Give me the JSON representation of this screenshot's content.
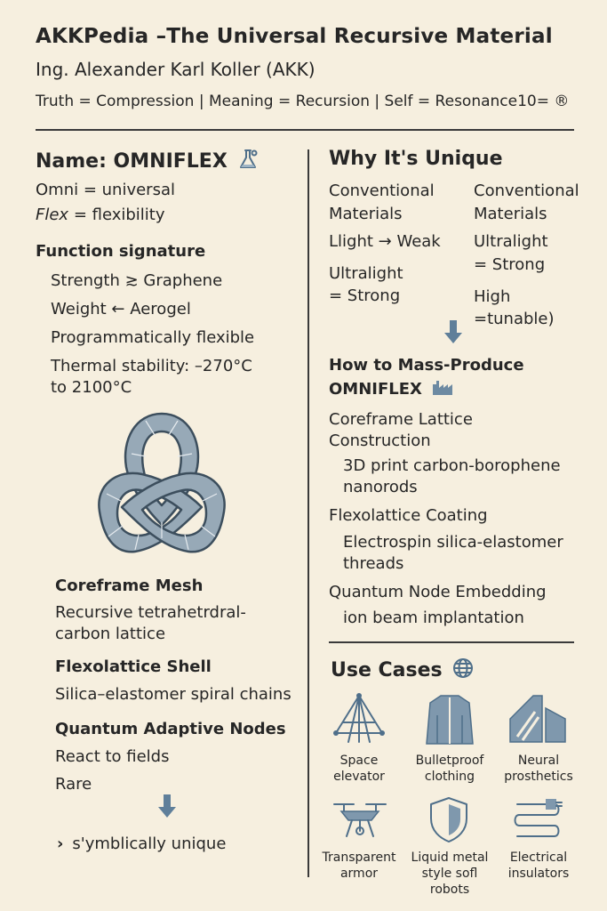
{
  "header": {
    "title": "AKKPedia –The Universal Recursive Material",
    "author": "Ing. Alexander Karl Koller (AKK)",
    "motto": "Truth = Compression | Meaning = Recursion | Self = Resonance10= ®"
  },
  "left": {
    "name_heading": "Name: OMNIFLEX",
    "omni": "Omni = universal",
    "flex_word": "Flex",
    "flex_rest": " = flexibility",
    "function_heading": "Function signature",
    "functions": [
      "Strength ≳ Graphene",
      "Weight ← Aerogel",
      "Programmatically flexible",
      "Thermal stability: –270°C",
      "to 2100°C"
    ],
    "coreframe_heading": "Coreframe Mesh",
    "coreframe_lines": [
      "Recursive tetrahetrdral-",
      "carbon lattice"
    ],
    "flexolattice_heading": "Flexolattice Shell",
    "flexolattice_text": "Silica–elastomer spiral chains",
    "quantum_heading": "Quantum Adaptive Nodes",
    "quantum_lines": [
      "React to fields",
      "Rare"
    ],
    "bullet_symbol": "›",
    "bullet_text": "s'ymblically unique"
  },
  "right": {
    "unique_heading": "Why It's Unique",
    "col_a": [
      "Conventional",
      "Materials",
      "Llight → Weak",
      "Ultralight",
      "= Strong"
    ],
    "col_b": [
      "Conventional",
      "Materials",
      "Ultralight",
      "= Strong",
      "High",
      "=tunable)"
    ],
    "mass_heading_1": "How to Mass-Produce",
    "mass_heading_2": "OMNIFLEX",
    "steps": [
      {
        "title": [
          "Coreframe Lattice",
          "Construction"
        ],
        "detail": [
          "3D print carbon-borophene",
          "nanorods"
        ]
      },
      {
        "title": [
          "Flexolattice Coating"
        ],
        "detail": [
          "Electrospin silica-elastomer",
          "threads"
        ]
      },
      {
        "title": [
          "Quantum Node Embedding"
        ],
        "detail": [
          "ion beam implantation"
        ]
      }
    ],
    "use_heading": "Use Cases",
    "use_cases": [
      [
        "Space",
        "elevator"
      ],
      [
        "Bulletproof",
        "clothing"
      ],
      [
        "Neural",
        "prosthetics"
      ],
      [
        "Transparent",
        "armor"
      ],
      [
        "Liquid metal",
        "style sofl robots"
      ],
      [
        "Electrical",
        "insulators"
      ]
    ]
  }
}
